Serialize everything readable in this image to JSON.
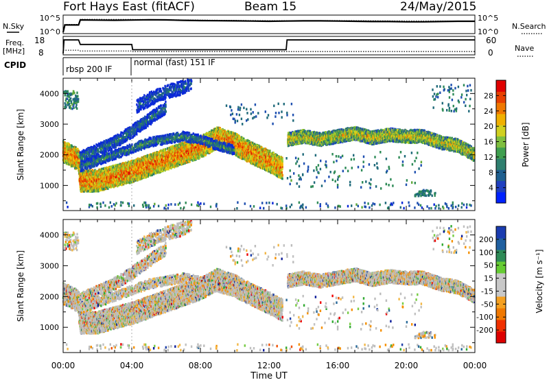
{
  "header": {
    "station": "Fort Hays East (fitACF)",
    "beam": "Beam 15",
    "date": "24/May/2015"
  },
  "labels": {
    "nsky": "N.Sky",
    "nsearch": "N.Search",
    "freq_line1": "Freq.",
    "freq_line2": "[MHz]",
    "nave": "Nave",
    "cpid": "CPID",
    "x_axis": "Time UT",
    "slant_range": "Slant Range [km]",
    "power_bar": "Power [dB]",
    "velocity_bar": "Velocity [m s⁻¹]"
  },
  "noise_panel": {
    "left_ticks": [
      "10^5",
      "10^0"
    ],
    "right_ticks": [
      "10^5",
      "10^0"
    ]
  },
  "freq_panel": {
    "left_ticks": [
      "18",
      "8"
    ],
    "right_ticks": [
      "60",
      "0"
    ]
  },
  "cpid_panel": {
    "segments": [
      {
        "start_hour": 0,
        "end_hour": 4,
        "label": "rbsp 200 IF"
      },
      {
        "start_hour": 4,
        "end_hour": 24,
        "label": "normal (fast) 151 IF"
      }
    ]
  },
  "colors": {
    "power": [
      "#0a28d8",
      "#1e4fb0",
      "#1f6a7a",
      "#2e8b57",
      "#5fa83a",
      "#9acd32",
      "#d8d820",
      "#f5b800",
      "#f08000",
      "#e85a00",
      "#e63200",
      "#dd0000"
    ],
    "velocity": [
      "#ee0000",
      "#f05000",
      "#f59000",
      "#f2b84a",
      "#c0c0c0",
      "#bcbcbc",
      "#77cc44",
      "#33aa33",
      "#2a6a9a",
      "#1e3fa8",
      "#0f1f9a"
    ],
    "power_bar": [
      "#0022ff",
      "#1f3fbf",
      "#1f5f8f",
      "#2f7f6f",
      "#3f9f4f",
      "#7fbf3f",
      "#d0d020",
      "#f0b000",
      "#f07800",
      "#e84000",
      "#e00000"
    ],
    "velocity_bar": [
      "#dd0000",
      "#f03000",
      "#f07800",
      "#f5a020",
      "#c8c8c8",
      "#c8c8c8",
      "#66cc33",
      "#2e8b57",
      "#2060a0",
      "#1a3cb0"
    ]
  },
  "chart_data": [
    {
      "type": "line",
      "title": "",
      "ylabel": "N.Sky",
      "right_ylabel": "N.Search",
      "xlim": [
        0,
        24
      ],
      "y_scale": "log",
      "ylim": [
        1,
        100000
      ],
      "series": [
        {
          "name": "N.Sky",
          "x": [
            0,
            0.1,
            0.9,
            1,
            2,
            3,
            4,
            5,
            6,
            7,
            8,
            9,
            10,
            11,
            12,
            13,
            14,
            15,
            16,
            17,
            18,
            19,
            20,
            21,
            22,
            23,
            24
          ],
          "y": [
            1,
            200,
            200,
            8000,
            7000,
            6500,
            7500,
            9000,
            8000,
            6000,
            5000,
            4500,
            4000,
            3500,
            3000,
            3500,
            4000,
            4000,
            3500,
            3000,
            2500,
            2500,
            2000,
            2000,
            2500,
            3000,
            3000
          ]
        },
        {
          "name": "N.Search",
          "x": [
            0,
            0.1,
            0.9,
            1,
            4,
            8,
            12,
            16,
            20,
            24
          ],
          "y": [
            1,
            300,
            300,
            12000,
            11000,
            7000,
            4500,
            5000,
            3500,
            3500
          ]
        }
      ]
    },
    {
      "type": "line",
      "title": "",
      "ylabel": "Freq. [MHz]",
      "right_ylabel": "Nave",
      "xlim": [
        0,
        24
      ],
      "ylim": [
        8,
        18
      ],
      "right_ylim": [
        0,
        60
      ],
      "series": [
        {
          "name": "Freq.",
          "x": [
            0,
            0.05,
            0.9,
            1.0,
            4.0,
            4.05,
            13.0,
            13.05,
            24
          ],
          "y": [
            8,
            17,
            17,
            14,
            14,
            10.5,
            10.5,
            17,
            17
          ]
        },
        {
          "name": "Nave",
          "x": [
            0,
            0.9,
            1.0,
            4.0,
            4.05,
            24
          ],
          "y": [
            13,
            13,
            10,
            10,
            8,
            8
          ]
        }
      ]
    },
    {
      "type": "heatmap",
      "title": "",
      "xlabel": "",
      "ylabel": "Slant Range [km]",
      "xlim": [
        0,
        24
      ],
      "ylim": [
        180,
        4500
      ],
      "y_ticks": [
        1000,
        2000,
        3000,
        4000
      ],
      "colorbar_label": "Power [dB]",
      "colorbar_ticks": [
        4,
        8,
        12,
        16,
        20,
        24,
        28
      ],
      "colorbar_range": [
        0,
        32
      ]
    },
    {
      "type": "heatmap",
      "title": "",
      "xlabel": "Time UT",
      "ylabel": "Slant Range [km]",
      "xlim": [
        0,
        24
      ],
      "ylim": [
        180,
        4500
      ],
      "x_ticks": [
        "00:00",
        "04:00",
        "08:00",
        "12:00",
        "16:00",
        "20:00",
        "00:00"
      ],
      "y_ticks": [
        1000,
        2000,
        3000,
        4000
      ],
      "colorbar_label": "Velocity [m s⁻¹]",
      "colorbar_ticks": [
        -200,
        -100,
        -50,
        -15,
        15,
        50,
        100,
        200
      ],
      "colorbar_range": [
        -250,
        250
      ]
    }
  ]
}
